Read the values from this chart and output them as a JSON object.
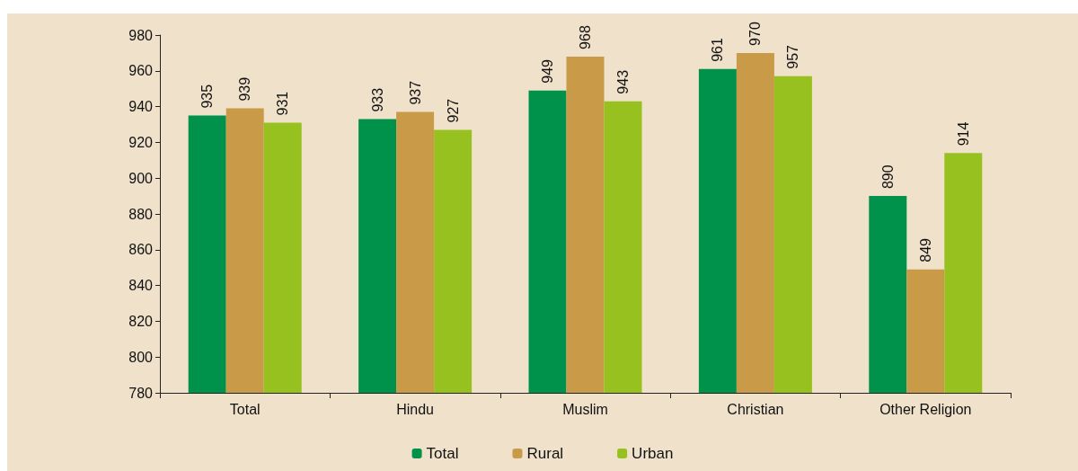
{
  "chart_data": {
    "type": "bar",
    "categories": [
      "Total",
      "Hindu",
      "Muslim",
      "Christian",
      "Other Religion"
    ],
    "series": [
      {
        "name": "Total",
        "color": "#00924a",
        "values": [
          935,
          933,
          949,
          961,
          890
        ]
      },
      {
        "name": "Rural",
        "color": "#c99a48",
        "values": [
          939,
          937,
          968,
          970,
          849
        ]
      },
      {
        "name": "Urban",
        "color": "#97c11f",
        "values": [
          931,
          927,
          943,
          957,
          914
        ]
      }
    ],
    "ylim": [
      780,
      980
    ],
    "yticks": [
      780,
      800,
      820,
      840,
      860,
      880,
      900,
      920,
      940,
      960,
      980
    ],
    "grid": false,
    "legend": "bottom",
    "data_labels": true
  }
}
